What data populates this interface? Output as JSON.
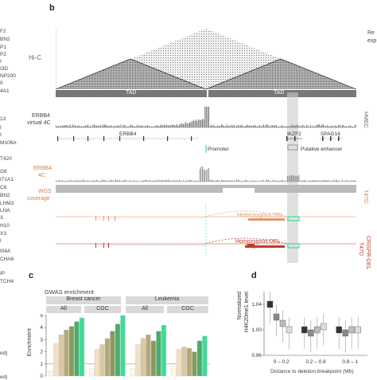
{
  "left_gene_list": [
    "F2",
    "BN2",
    "P1",
    "P2",
    "I",
    "I3D",
    "NP200",
    "II",
    "4A1",
    "13",
    "I",
    "I",
    "M106A",
    "T420",
    "G8",
    "I71A1",
    "C8",
    "BN2",
    "LHM3",
    "LHA",
    "X",
    "H10",
    "X3",
    "I",
    "I04A",
    "CHA6",
    "IP",
    "TCH4",
    "ed)",
    "ed)"
  ],
  "panel_b": {
    "letter": "b",
    "corner_label_1": "Re",
    "corner_label_2": "exp",
    "hic_label": "Hi-C",
    "tad_labels": [
      "TAD",
      "TAD"
    ],
    "erbb4_virtual_4c": [
      "ERBB4",
      "virtual 4C"
    ],
    "genes": {
      "erbb4": "ERBB4",
      "ikzf2": "IKZF2",
      "spag16": "SPAG16"
    },
    "promoter_label": "Promoter",
    "enhancer_label": "Putative enhancer",
    "erbb4_4c": [
      "ERBB4",
      "4C"
    ],
    "wgs_coverage": [
      "WGS",
      "coverage"
    ],
    "het_del_label": "Heterozygous DEL",
    "hom_del_label": "Homozygous DEL",
    "cell_hmec": "HMEC",
    "cell_t47d": "T47D",
    "cell_t47d_crispr": [
      "T47D",
      "CRISPR-DEL"
    ],
    "colors": {
      "orange": "#e8956a",
      "red": "#c0392b",
      "green": "#3ddc97",
      "grey": "#777777"
    }
  },
  "panel_c": {
    "letter": "c",
    "title": "GWAS enrichment",
    "headers": [
      "Breast cancer",
      "Leukemia"
    ],
    "subheaders": [
      "All",
      "CGC",
      "All",
      "CGC"
    ],
    "ylabel": "Enrichment",
    "y_ticks": [
      "0",
      "1",
      "2",
      "3",
      "4",
      "5"
    ]
  },
  "panel_d": {
    "letter": "d",
    "ylabel": [
      "Normalized",
      "H4K20me1 level"
    ],
    "y_ticks": [
      "0.96",
      "1.00",
      "1.04"
    ],
    "x_ticks": [
      "0 – 0.2",
      "0.2 – 0.8",
      "0.8 – 1"
    ],
    "xlabel": "Distance to deletion breakpoint (Mb)"
  },
  "chart_data": [
    {
      "type": "bar",
      "title": "GWAS enrichment",
      "ylabel": "Enrichment",
      "ylim": [
        0,
        5
      ],
      "categories": [
        "Breast cancer All",
        "Breast cancer CGC",
        "Leukemia All",
        "Leukemia CGC"
      ],
      "series": [
        {
          "values": [
            0.4,
            0.6,
            0.6,
            0.8
          ],
          "color": "#fdfbe0"
        },
        {
          "values": [
            2.7,
            2.2,
            2.6,
            2.2
          ],
          "color": "#f2e0c4"
        },
        {
          "values": [
            3.4,
            2.6,
            3.1,
            2.4
          ],
          "color": "#d9c9a0"
        },
        {
          "values": [
            3.8,
            3.1,
            3.4,
            2.3
          ],
          "color": "#b5a878"
        },
        {
          "values": [
            4.1,
            3.7,
            2.9,
            2.0
          ],
          "color": "#8a9a5a"
        },
        {
          "values": [
            4.5,
            4.3,
            3.7,
            2.9
          ],
          "color": "#4aab6d"
        },
        {
          "values": [
            4.8,
            5.0,
            4.2,
            3.3
          ],
          "color": "#3ddc97"
        }
      ],
      "reference_line": 1
    },
    {
      "type": "bar",
      "ylabel": "Normalized H4K20me1 level",
      "xlabel": "Distance to deletion breakpoint (Mb)",
      "ylim": [
        0.96,
        1.06
      ],
      "categories": [
        "0 – 0.2",
        "0.2 – 0.8",
        "0.8 – 1"
      ],
      "series": [
        {
          "values": [
            1.04,
            1.0,
            1.0
          ],
          "color": "#333333"
        },
        {
          "values": [
            1.02,
            0.995,
            0.995
          ],
          "color": "#888888"
        },
        {
          "values": [
            1.01,
            1.0,
            1.0
          ],
          "color": "#bbbbbb"
        },
        {
          "values": [
            1.0,
            1.005,
            1.0
          ],
          "color": "#dddddd"
        }
      ]
    }
  ]
}
